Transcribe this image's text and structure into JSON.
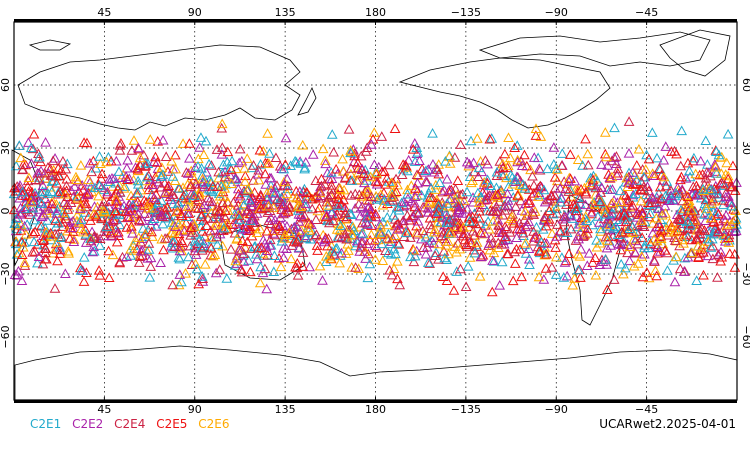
{
  "map": {
    "projection": "equirectangular",
    "lon_range": [
      0,
      360
    ],
    "lat_range": [
      -90,
      90
    ],
    "grid": "dotted",
    "top_lon_labels": [
      "45",
      "90",
      "135",
      "180",
      "−135",
      "−90",
      "−45"
    ],
    "bottom_lon_labels": [
      "45",
      "90",
      "135",
      "180",
      "−135",
      "−90",
      "−45"
    ],
    "lon_tick_values": [
      45,
      90,
      135,
      180,
      225,
      270,
      315
    ],
    "lat_labels": [
      "60",
      "30",
      "0",
      "−30",
      "−60"
    ],
    "lat_tick_values": [
      60,
      30,
      0,
      -30,
      -60
    ],
    "marker": "open-triangle",
    "observation_lat_band": [
      -45,
      45
    ]
  },
  "legend": [
    {
      "label": "C2E1",
      "color": "#22aacc"
    },
    {
      "label": "C2E2",
      "color": "#aa22aa"
    },
    {
      "label": "C2E4",
      "color": "#cc2244"
    },
    {
      "label": "C2E5",
      "color": "#ee1111"
    },
    {
      "label": "C2E6",
      "color": "#ffaa00"
    }
  ],
  "dataset_label": "UCARwet2.2025-04-01"
}
